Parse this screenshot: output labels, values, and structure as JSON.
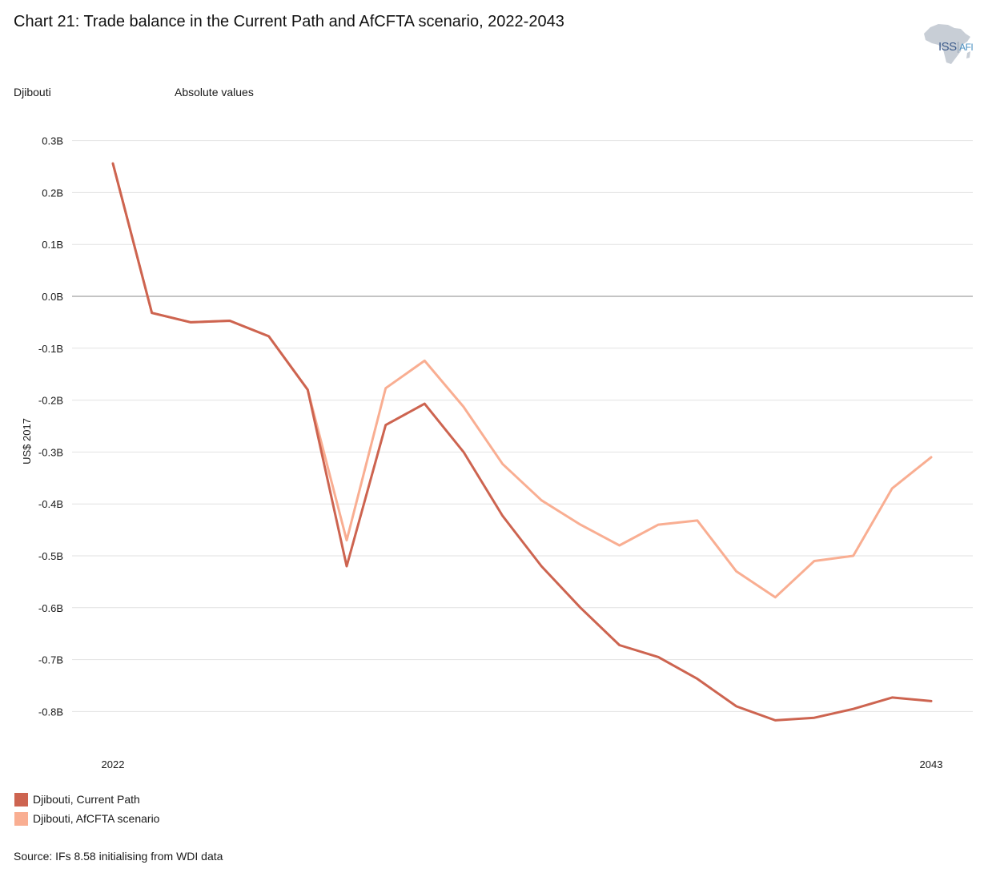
{
  "header": {
    "title": "Chart 21: Trade balance in the Current Path and AfCFTA scenario, 2022-2043",
    "country": "Djibouti",
    "mode": "Absolute values"
  },
  "logo": {
    "main": "ISS",
    "separator": "|",
    "sub": "AFI"
  },
  "colors": {
    "current_path": "#cd6450",
    "afcfta": "#f9ae92",
    "grid": "#e2e2e2",
    "zero_line": "#888888"
  },
  "chart_data": {
    "type": "line",
    "ylabel": "US$ 2017",
    "ylim": [
      -0.88,
      0.32
    ],
    "yticks": [
      0.3,
      0.2,
      0.1,
      0.0,
      -0.1,
      -0.2,
      -0.3,
      -0.4,
      -0.5,
      -0.6,
      -0.7,
      -0.8
    ],
    "ytick_labels": [
      "0.3B",
      "0.2B",
      "0.1B",
      "0.0B",
      "-0.1B",
      "-0.2B",
      "-0.3B",
      "-0.4B",
      "-0.5B",
      "-0.6B",
      "-0.7B",
      "-0.8B"
    ],
    "xtick_labels": [
      "2022",
      "2043"
    ],
    "x": [
      2022,
      2023,
      2024,
      2025,
      2026,
      2027,
      2028,
      2029,
      2030,
      2031,
      2032,
      2033,
      2034,
      2035,
      2036,
      2037,
      2038,
      2039,
      2040,
      2041,
      2042,
      2043
    ],
    "series": [
      {
        "name": "Djibouti, Current Path",
        "color": "#cd6450",
        "values": [
          0.256,
          -0.032,
          -0.05,
          -0.047,
          -0.077,
          -0.18,
          -0.52,
          -0.248,
          -0.207,
          -0.3,
          -0.423,
          -0.52,
          -0.6,
          -0.672,
          -0.695,
          -0.737,
          -0.79,
          -0.817,
          -0.812,
          -0.795,
          -0.773,
          -0.78
        ]
      },
      {
        "name": "Djibouti, AfCFTA scenario",
        "color": "#f9ae92",
        "values": [
          0.256,
          -0.032,
          -0.05,
          -0.047,
          -0.077,
          -0.18,
          -0.47,
          -0.177,
          -0.124,
          -0.213,
          -0.323,
          -0.393,
          -0.44,
          -0.48,
          -0.44,
          -0.432,
          -0.53,
          -0.58,
          -0.51,
          -0.5,
          -0.37,
          -0.31
        ]
      }
    ]
  },
  "source": "Source: IFs 8.58 initialising from WDI data"
}
